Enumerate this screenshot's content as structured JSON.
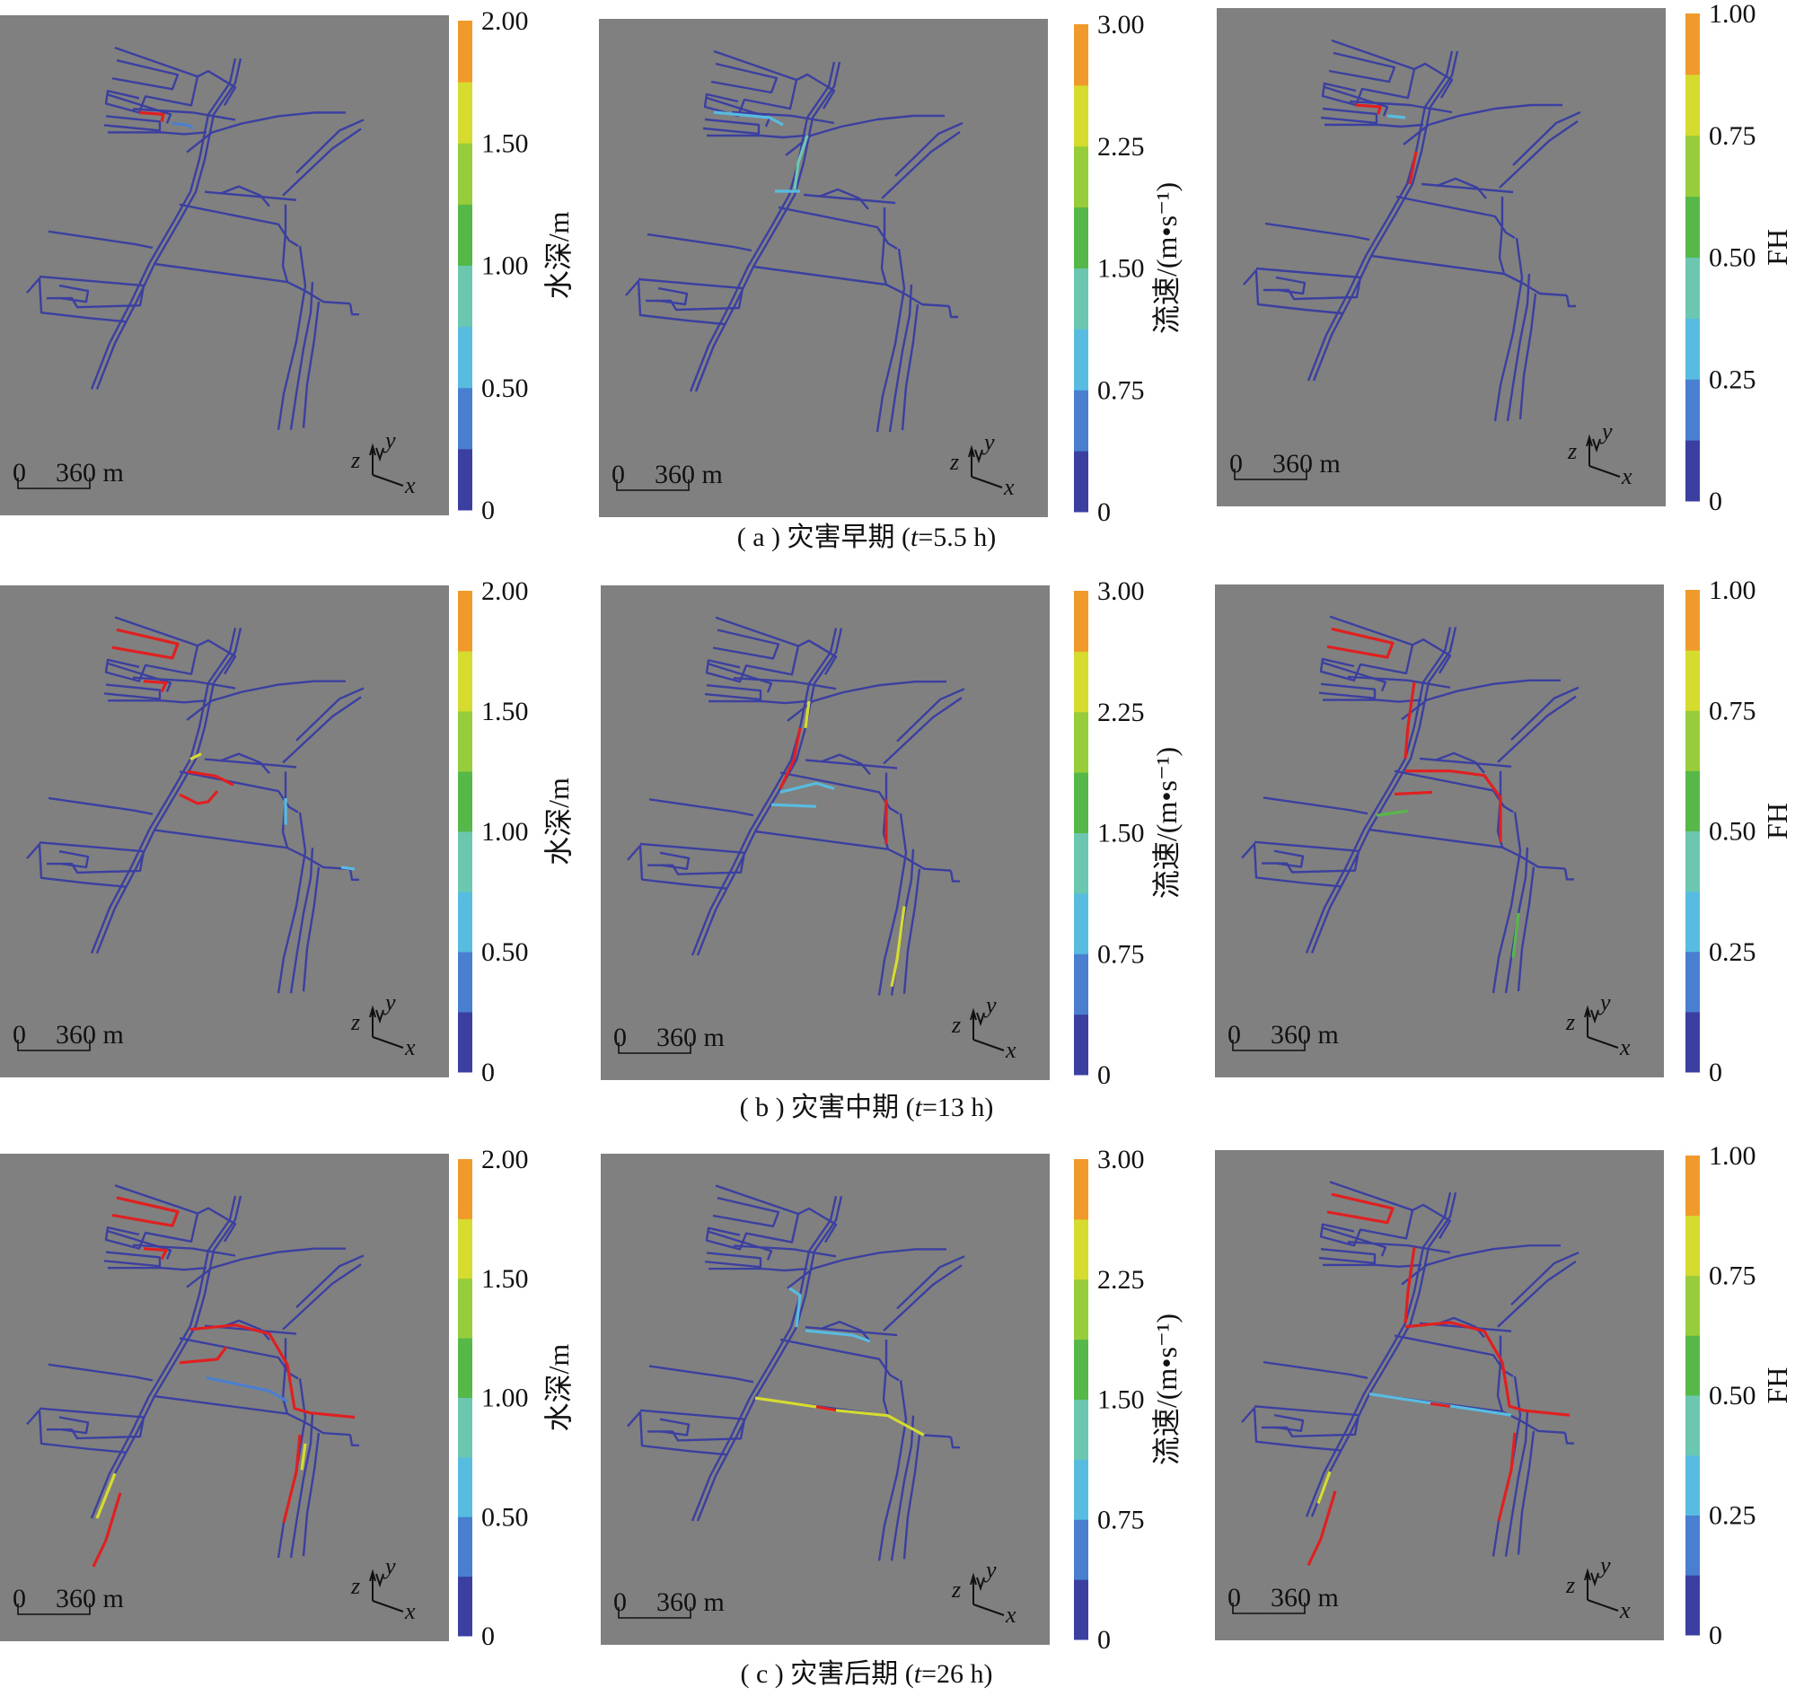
{
  "figure": {
    "captions": [
      {
        "prefix": "( a ) 灾害早期  (",
        "t": "t",
        "rest": "=5.5 h)"
      },
      {
        "prefix": "( b ) 灾害中期  (",
        "t": "t",
        "rest": "=13 h)"
      },
      {
        "prefix": "( c ) 灾害后期  (",
        "t": "t",
        "rest": "=26 h)"
      }
    ],
    "columns": [
      {
        "quantity": "水深/m",
        "ticks": [
          "0",
          "0.50",
          "1.00",
          "1.50",
          "2.00"
        ]
      },
      {
        "quantity": "流速/(m•s⁻¹)",
        "ticks": [
          "0",
          "0.75",
          "1.50",
          "2.25",
          "3.00"
        ]
      },
      {
        "quantity": "FH",
        "ticks": [
          "0",
          "0.25",
          "0.50",
          "0.75",
          "1.00"
        ]
      }
    ],
    "scale_bar": {
      "zero": "0",
      "length": "360 m"
    },
    "axes_glyph": {
      "z": "z",
      "y": "y",
      "x": "x"
    },
    "colors": {
      "background": "#808080",
      "tunnel": "#3b3fa0",
      "flooded": "#e02020",
      "colormap": [
        "#3b3fa0",
        "#4a7fcf",
        "#58bce0",
        "#6cc7b0",
        "#55b848",
        "#97cc3a",
        "#d6dc2f",
        "#ef9a2a"
      ]
    },
    "stages": [
      {
        "stage": "early",
        "t_h": 5.5
      },
      {
        "stage": "middle",
        "t_h": 13
      },
      {
        "stage": "late",
        "t_h": 26
      }
    ]
  }
}
